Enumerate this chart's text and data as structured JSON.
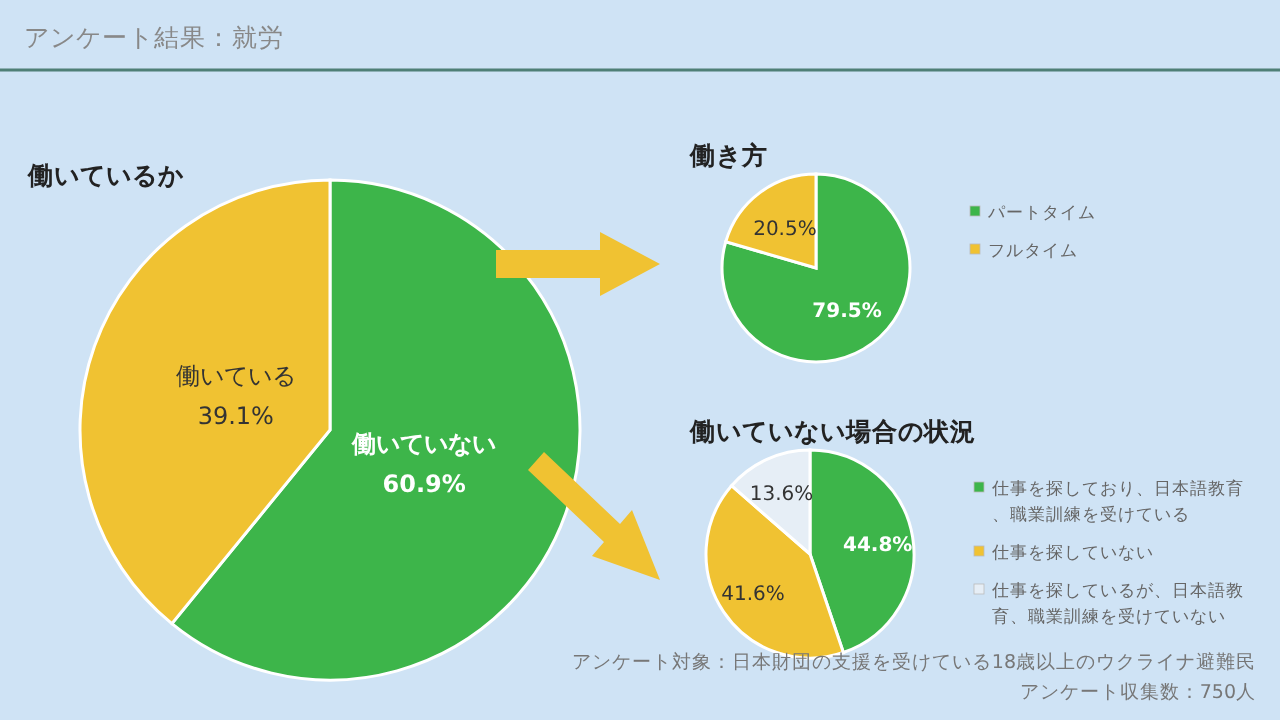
{
  "chart_data": [
    {
      "type": "pie",
      "title": "働いているか",
      "annotations": [
        "アンケート結果：就労"
      ],
      "categories": [
        "働いていない",
        "働いている"
      ],
      "values": [
        60.9,
        39.1
      ],
      "value_labels": [
        "60.9%",
        "39.1%"
      ],
      "colors": [
        "#3db54a",
        "#f0c232"
      ],
      "legend": false
    },
    {
      "type": "pie",
      "title": "働き方",
      "categories": [
        "パートタイム",
        "フルタイム"
      ],
      "values": [
        79.5,
        20.5
      ],
      "value_labels": [
        "79.5%",
        "20.5%"
      ],
      "colors": [
        "#3db54a",
        "#f0c232"
      ],
      "legend": "right"
    },
    {
      "type": "pie",
      "title": "働いていない場合の状況",
      "annotations": [
        "アンケート対象：日本財団の支援を受けている18歳以上のウクライナ避難民",
        "アンケート収集数：750人"
      ],
      "categories": [
        "仕事を探しており、日本語教育、職業訓練を受けている",
        "仕事を探していない",
        "仕事を探しているが、日本語教育、職業訓練を受けていない"
      ],
      "values": [
        44.8,
        41.6,
        13.6
      ],
      "value_labels": [
        "44.8%",
        "41.6%",
        "13.6%"
      ],
      "colors": [
        "#3db54a",
        "#f0c232",
        "#e6eef6"
      ],
      "legend": "right"
    }
  ]
}
